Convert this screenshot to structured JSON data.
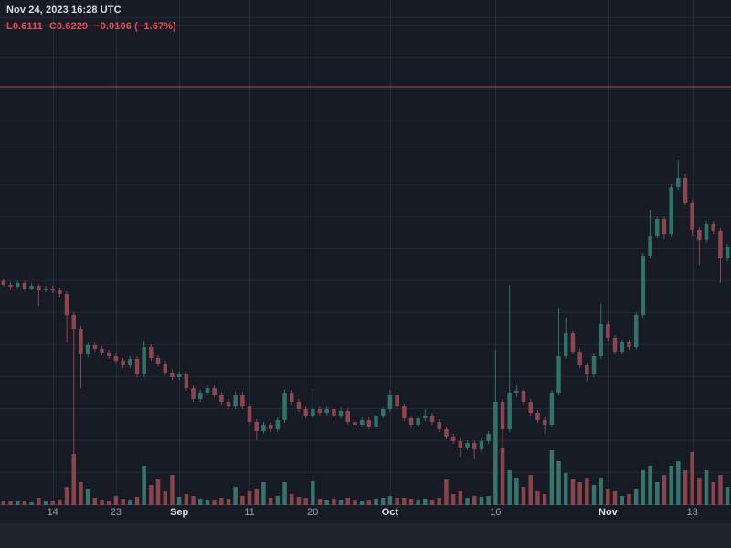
{
  "header": {
    "timestamp": "Nov 24, 2023 16:28 UTC",
    "low": "L0.6111",
    "close": "C0.6229",
    "change": "−0.0106 (−1.67%)"
  },
  "colors": {
    "background": "#171b26",
    "bottom_strip": "#1e222c",
    "grid_h": "rgba(190,200,225,0.07)",
    "grid_v": "rgba(190,200,225,0.09)",
    "axis_line": "rgba(190,200,225,0.16)",
    "up": "#2e7268",
    "down": "#8e454d",
    "vol_up": "#3b8378",
    "vol_down": "#9d4a50",
    "ref_line": "rgba(225,95,105,0.35)",
    "text_primary": "#d9dde5",
    "text_secondary": "#9aa1ae",
    "negative_text": "#e84b54"
  },
  "chart_data": {
    "type": "candlestick",
    "has_volume": true,
    "interval": "1D",
    "start_date": "2023-08-07",
    "end_date": "2023-11-18",
    "ylim": {
      "min": 0.3944,
      "max": 0.836
    },
    "reference_line_price": 0.76,
    "grid": {
      "h_start": 27,
      "h_step": 35,
      "axis_y": 552
    },
    "x_ticks": [
      {
        "index": 7,
        "label": "14",
        "month": false
      },
      {
        "index": 16,
        "label": "23",
        "month": false
      },
      {
        "index": 25,
        "label": "Sep",
        "month": true
      },
      {
        "index": 35,
        "label": "11",
        "month": false
      },
      {
        "index": 44,
        "label": "20",
        "month": false
      },
      {
        "index": 55,
        "label": "Oct",
        "month": true
      },
      {
        "index": 70,
        "label": "16",
        "month": false
      },
      {
        "index": 86,
        "label": "Nov",
        "month": true
      },
      {
        "index": 98,
        "label": "13",
        "month": false
      }
    ],
    "ohlc_format": [
      "open",
      "high",
      "low",
      "close",
      "volume_rel"
    ],
    "candles": [
      [
        0.59,
        0.592,
        0.585,
        0.5864,
        5
      ],
      [
        0.5864,
        0.589,
        0.583,
        0.5848,
        4
      ],
      [
        0.5848,
        0.59,
        0.5836,
        0.588,
        4
      ],
      [
        0.588,
        0.5896,
        0.5816,
        0.5832,
        5
      ],
      [
        0.5832,
        0.588,
        0.5816,
        0.5856,
        3
      ],
      [
        0.5856,
        0.5872,
        0.568,
        0.5816,
        8
      ],
      [
        0.5816,
        0.5856,
        0.58,
        0.5832,
        4
      ],
      [
        0.5832,
        0.5856,
        0.5792,
        0.5816,
        5
      ],
      [
        0.5816,
        0.584,
        0.576,
        0.5784,
        6
      ],
      [
        0.5784,
        0.5808,
        0.536,
        0.56,
        20
      ],
      [
        0.56,
        0.5624,
        0.4336,
        0.548,
        56
      ],
      [
        0.548,
        0.5504,
        0.496,
        0.5256,
        25
      ],
      [
        0.5256,
        0.536,
        0.5232,
        0.5336,
        18
      ],
      [
        0.5336,
        0.536,
        0.528,
        0.5304,
        8
      ],
      [
        0.5304,
        0.5328,
        0.5248,
        0.5272,
        6
      ],
      [
        0.5272,
        0.5296,
        0.5216,
        0.524,
        5
      ],
      [
        0.524,
        0.5264,
        0.5176,
        0.52,
        10
      ],
      [
        0.52,
        0.5224,
        0.5136,
        0.516,
        7
      ],
      [
        0.516,
        0.524,
        0.5136,
        0.5216,
        6
      ],
      [
        0.5216,
        0.524,
        0.5056,
        0.508,
        9
      ],
      [
        0.508,
        0.5376,
        0.5056,
        0.532,
        43
      ],
      [
        0.532,
        0.5344,
        0.52,
        0.5224,
        22
      ],
      [
        0.5224,
        0.5248,
        0.5152,
        0.5176,
        28
      ],
      [
        0.5176,
        0.52,
        0.5072,
        0.5096,
        15
      ],
      [
        0.5096,
        0.512,
        0.5032,
        0.5056,
        33
      ],
      [
        0.5056,
        0.5104,
        0.5032,
        0.508,
        9
      ],
      [
        0.508,
        0.5104,
        0.4936,
        0.496,
        12
      ],
      [
        0.496,
        0.4984,
        0.484,
        0.4864,
        10
      ],
      [
        0.4864,
        0.4944,
        0.484,
        0.492,
        7
      ],
      [
        0.492,
        0.4984,
        0.4896,
        0.496,
        6
      ],
      [
        0.496,
        0.4984,
        0.488,
        0.4904,
        6
      ],
      [
        0.4904,
        0.4928,
        0.4816,
        0.484,
        8
      ],
      [
        0.484,
        0.4864,
        0.4776,
        0.48,
        7
      ],
      [
        0.48,
        0.4928,
        0.4776,
        0.4904,
        20
      ],
      [
        0.4904,
        0.4928,
        0.4776,
        0.48,
        10
      ],
      [
        0.48,
        0.4824,
        0.464,
        0.4664,
        15
      ],
      [
        0.4664,
        0.4688,
        0.4504,
        0.4584,
        18
      ],
      [
        0.4584,
        0.4664,
        0.456,
        0.464,
        25
      ],
      [
        0.464,
        0.4664,
        0.4576,
        0.46,
        8
      ],
      [
        0.46,
        0.4704,
        0.4576,
        0.468,
        10
      ],
      [
        0.468,
        0.4944,
        0.4656,
        0.492,
        25
      ],
      [
        0.492,
        0.4944,
        0.4816,
        0.484,
        12
      ],
      [
        0.484,
        0.4864,
        0.4752,
        0.4776,
        9
      ],
      [
        0.4776,
        0.48,
        0.4696,
        0.472,
        8
      ],
      [
        0.472,
        0.496,
        0.4696,
        0.4776,
        26
      ],
      [
        0.4776,
        0.48,
        0.472,
        0.4744,
        7
      ],
      [
        0.4744,
        0.48,
        0.472,
        0.4776,
        6
      ],
      [
        0.4776,
        0.48,
        0.4696,
        0.472,
        7
      ],
      [
        0.472,
        0.4784,
        0.4696,
        0.476,
        6
      ],
      [
        0.476,
        0.4784,
        0.464,
        0.4664,
        8
      ],
      [
        0.4664,
        0.4688,
        0.4616,
        0.464,
        6
      ],
      [
        0.464,
        0.4704,
        0.4616,
        0.468,
        5
      ],
      [
        0.468,
        0.4704,
        0.46,
        0.4624,
        6
      ],
      [
        0.4624,
        0.4744,
        0.46,
        0.472,
        7
      ],
      [
        0.472,
        0.4792,
        0.4696,
        0.4776,
        8
      ],
      [
        0.4776,
        0.4944,
        0.4752,
        0.4904,
        10
      ],
      [
        0.4904,
        0.4928,
        0.4776,
        0.48,
        8
      ],
      [
        0.48,
        0.4824,
        0.4672,
        0.4696,
        8
      ],
      [
        0.4696,
        0.472,
        0.4616,
        0.464,
        7
      ],
      [
        0.464,
        0.472,
        0.4616,
        0.4696,
        6
      ],
      [
        0.4696,
        0.4776,
        0.4672,
        0.472,
        7
      ],
      [
        0.472,
        0.4744,
        0.464,
        0.4664,
        6
      ],
      [
        0.4664,
        0.4688,
        0.4576,
        0.46,
        8
      ],
      [
        0.46,
        0.4624,
        0.4512,
        0.4536,
        28
      ],
      [
        0.4536,
        0.456,
        0.4472,
        0.4496,
        12
      ],
      [
        0.4496,
        0.452,
        0.436,
        0.444,
        15
      ],
      [
        0.444,
        0.4504,
        0.4416,
        0.448,
        8
      ],
      [
        0.448,
        0.4504,
        0.4336,
        0.4424,
        10
      ],
      [
        0.4424,
        0.452,
        0.44,
        0.4496,
        9
      ],
      [
        0.4496,
        0.4584,
        0.4472,
        0.456,
        10
      ],
      [
        0.456,
        0.5296,
        0.4344,
        0.484,
        88
      ],
      [
        0.484,
        0.4864,
        0.4224,
        0.46,
        63
      ],
      [
        0.46,
        0.5864,
        0.4576,
        0.492,
        38
      ],
      [
        0.492,
        0.4984,
        0.488,
        0.4936,
        30
      ],
      [
        0.4936,
        0.496,
        0.4816,
        0.484,
        20
      ],
      [
        0.484,
        0.4864,
        0.472,
        0.4744,
        33
      ],
      [
        0.4744,
        0.4768,
        0.4656,
        0.468,
        15
      ],
      [
        0.468,
        0.4704,
        0.456,
        0.464,
        12
      ],
      [
        0.464,
        0.4944,
        0.4616,
        0.492,
        60
      ],
      [
        0.492,
        0.5664,
        0.49,
        0.524,
        48
      ],
      [
        0.524,
        0.5576,
        0.5216,
        0.544,
        35
      ],
      [
        0.544,
        0.5464,
        0.5256,
        0.528,
        28
      ],
      [
        0.528,
        0.5304,
        0.5136,
        0.516,
        25
      ],
      [
        0.516,
        0.5184,
        0.5016,
        0.508,
        30
      ],
      [
        0.508,
        0.5264,
        0.5056,
        0.524,
        22
      ],
      [
        0.524,
        0.5696,
        0.5216,
        0.552,
        30
      ],
      [
        0.552,
        0.5544,
        0.5376,
        0.54,
        18
      ],
      [
        0.54,
        0.5424,
        0.5256,
        0.528,
        15
      ],
      [
        0.528,
        0.5384,
        0.5256,
        0.536,
        10
      ],
      [
        0.536,
        0.5384,
        0.5296,
        0.532,
        12
      ],
      [
        0.532,
        0.5624,
        0.5296,
        0.56,
        18
      ],
      [
        0.56,
        0.6144,
        0.5576,
        0.612,
        38
      ],
      [
        0.612,
        0.652,
        0.6096,
        0.6296,
        43
      ],
      [
        0.6296,
        0.6464,
        0.6272,
        0.644,
        25
      ],
      [
        0.644,
        0.6464,
        0.6264,
        0.6312,
        33
      ],
      [
        0.6312,
        0.6744,
        0.6288,
        0.672,
        43
      ],
      [
        0.672,
        0.696,
        0.6696,
        0.68,
        48
      ],
      [
        0.68,
        0.684,
        0.656,
        0.6584,
        38
      ],
      [
        0.6584,
        0.6608,
        0.6296,
        0.6344,
        58
      ],
      [
        0.6344,
        0.6368,
        0.604,
        0.6256,
        30
      ],
      [
        0.6256,
        0.6424,
        0.6232,
        0.64,
        38
      ],
      [
        0.64,
        0.6424,
        0.6312,
        0.6336,
        25
      ],
      [
        0.6336,
        0.636,
        0.588,
        0.6096,
        33
      ],
      [
        0.6096,
        0.6224,
        0.6072,
        0.62,
        20
      ]
    ]
  }
}
